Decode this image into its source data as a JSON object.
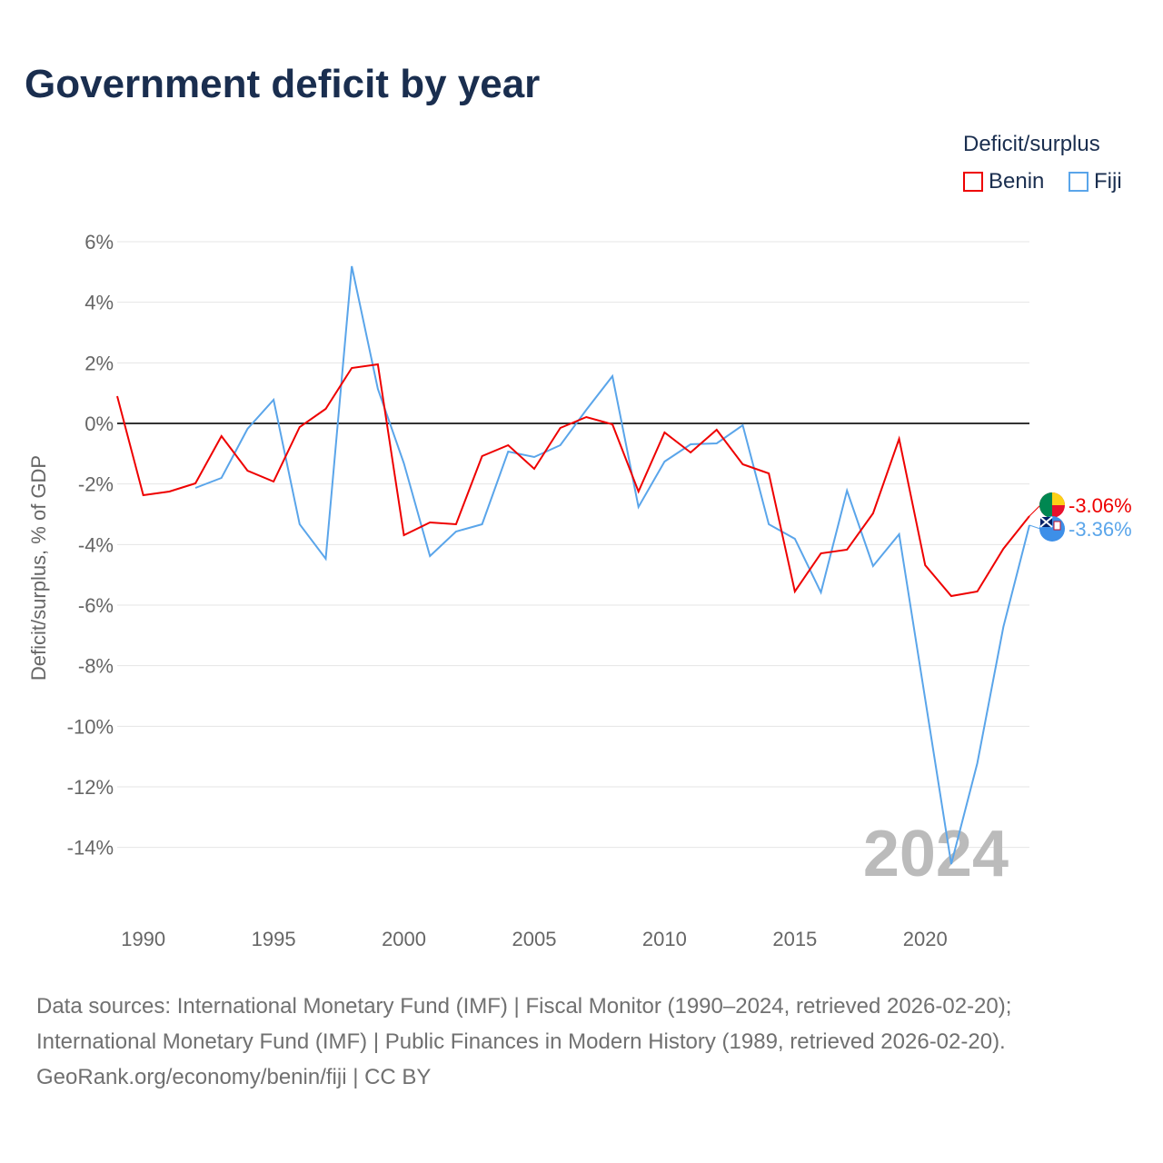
{
  "title": "Government deficit by year",
  "legend": {
    "title": "Deficit/surplus",
    "items": [
      {
        "name": "Benin",
        "color": "#ee0000"
      },
      {
        "name": "Fiji",
        "color": "#5aa5ea"
      }
    ]
  },
  "year_label": "2024",
  "footer": {
    "line1": "Data sources: International Monetary Fund (IMF) | Fiscal Monitor (1990–2024, retrieved 2026-02-20);",
    "line2": "International Monetary Fund (IMF) | Public Finances in Modern History (1989, retrieved 2026-02-20).",
    "line3": "GeoRank.org/economy/benin/fiji | CC BY"
  },
  "chart_data": {
    "type": "line",
    "title": "Government deficit by year",
    "xlabel": "",
    "ylabel": "Deficit/surplus, % of GDP",
    "xlim": [
      1989,
      2024
    ],
    "ylim": [
      -16,
      6
    ],
    "yticks": [
      6,
      4,
      2,
      0,
      -2,
      -4,
      -6,
      -8,
      -10,
      -12,
      -14
    ],
    "ytick_labels": [
      "6%",
      "4%",
      "2%",
      "0%",
      "-2%",
      "-4%",
      "-6%",
      "-8%",
      "-10%",
      "-12%",
      "-14%"
    ],
    "xticks": [
      1990,
      1995,
      2000,
      2005,
      2010,
      2015,
      2020
    ],
    "xtick_labels": [
      "1990",
      "1995",
      "2000",
      "2005",
      "2010",
      "2015",
      "2020"
    ],
    "grid": true,
    "legend_position": "top-right",
    "series": [
      {
        "name": "Benin",
        "color": "#ee0000",
        "end_label": "-3.06%",
        "start_year": 1989,
        "values": [
          0.9,
          -2.37,
          -2.25,
          -1.98,
          -0.42,
          -1.56,
          -1.92,
          -0.12,
          0.48,
          1.83,
          1.95,
          -3.69,
          -3.27,
          -3.33,
          -1.08,
          -0.72,
          -1.5,
          -0.15,
          0.21,
          -0.03,
          -2.25,
          -0.3,
          -0.96,
          -0.21,
          -1.35,
          -1.65,
          -5.55,
          -4.29,
          -4.17,
          -2.97,
          -0.51,
          -4.68,
          -5.7,
          -5.55,
          -4.14,
          -3.06
        ]
      },
      {
        "name": "Fiji",
        "color": "#5aa5ea",
        "end_label": "-3.36%",
        "start_year": 1992,
        "values": [
          -2.13,
          -1.8,
          -0.18,
          0.78,
          -3.33,
          -4.47,
          5.19,
          1.14,
          -1.32,
          -4.38,
          -3.57,
          -3.33,
          -0.93,
          -1.11,
          -0.72,
          0.45,
          1.56,
          -2.76,
          -1.26,
          -0.69,
          -0.66,
          -0.06,
          -3.33,
          -3.81,
          -5.58,
          -2.22,
          -4.71,
          -3.66,
          -9.1,
          -14.55,
          -11.22,
          -6.72,
          -3.36
        ]
      }
    ]
  }
}
